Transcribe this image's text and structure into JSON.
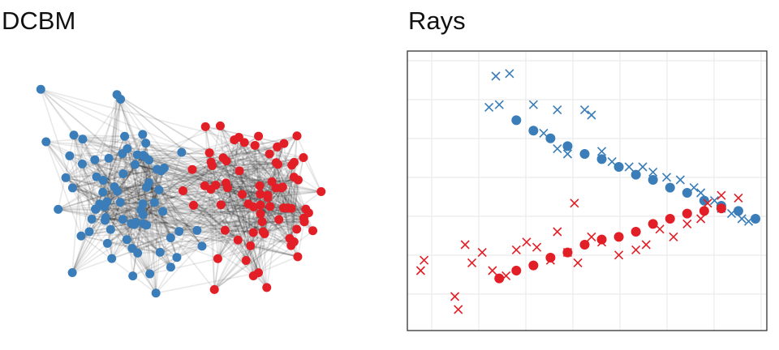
{
  "colors": {
    "blue": "#3A7DB8",
    "red": "#E21F26",
    "edge": "#000000",
    "grid": "#EBEBEB",
    "frame": "#333333"
  },
  "chart_data": [
    {
      "type": "network",
      "title": "DCBM",
      "groups": [
        {
          "color": "blue",
          "nodes": 75
        },
        {
          "color": "red",
          "nodes": 75
        }
      ],
      "edge_style": "semi-transparent gray"
    },
    {
      "type": "scatter",
      "title": "Rays",
      "xlabel": "",
      "ylabel": "",
      "xlim": [
        0,
        1
      ],
      "ylim": [
        0,
        1
      ],
      "grid": true,
      "series": [
        {
          "color": "blue",
          "marker": "circle",
          "points": [
            [
              0.3,
              0.78
            ],
            [
              0.35,
              0.74
            ],
            [
              0.4,
              0.71
            ],
            [
              0.45,
              0.68
            ],
            [
              0.5,
              0.65
            ],
            [
              0.55,
              0.63
            ],
            [
              0.6,
              0.6
            ],
            [
              0.65,
              0.57
            ],
            [
              0.7,
              0.55
            ],
            [
              0.75,
              0.52
            ],
            [
              0.8,
              0.5
            ],
            [
              0.85,
              0.47
            ],
            [
              0.9,
              0.45
            ],
            [
              0.95,
              0.43
            ],
            [
              1.0,
              0.4
            ]
          ]
        },
        {
          "color": "blue",
          "marker": "cross",
          "points": [
            [
              0.24,
              0.95
            ],
            [
              0.28,
              0.96
            ],
            [
              0.22,
              0.83
            ],
            [
              0.25,
              0.84
            ],
            [
              0.35,
              0.84
            ],
            [
              0.42,
              0.82
            ],
            [
              0.5,
              0.82
            ],
            [
              0.52,
              0.8
            ],
            [
              0.38,
              0.73
            ],
            [
              0.42,
              0.67
            ],
            [
              0.45,
              0.65
            ],
            [
              0.55,
              0.66
            ],
            [
              0.58,
              0.62
            ],
            [
              0.63,
              0.6
            ],
            [
              0.67,
              0.6
            ],
            [
              0.7,
              0.58
            ],
            [
              0.74,
              0.56
            ],
            [
              0.78,
              0.55
            ],
            [
              0.82,
              0.52
            ],
            [
              0.84,
              0.5
            ],
            [
              0.88,
              0.47
            ],
            [
              0.9,
              0.44
            ],
            [
              0.93,
              0.42
            ],
            [
              0.96,
              0.4
            ],
            [
              0.98,
              0.39
            ]
          ]
        },
        {
          "color": "red",
          "marker": "circle",
          "points": [
            [
              0.25,
              0.17
            ],
            [
              0.3,
              0.2
            ],
            [
              0.35,
              0.22
            ],
            [
              0.4,
              0.25
            ],
            [
              0.45,
              0.27
            ],
            [
              0.5,
              0.3
            ],
            [
              0.55,
              0.32
            ],
            [
              0.6,
              0.33
            ],
            [
              0.65,
              0.35
            ],
            [
              0.7,
              0.38
            ],
            [
              0.75,
              0.4
            ],
            [
              0.8,
              0.42
            ],
            [
              0.85,
              0.43
            ],
            [
              0.9,
              0.44
            ]
          ]
        },
        {
          "color": "red",
          "marker": "cross",
          "points": [
            [
              0.02,
              0.2
            ],
            [
              0.03,
              0.24
            ],
            [
              0.12,
              0.1
            ],
            [
              0.13,
              0.05
            ],
            [
              0.15,
              0.3
            ],
            [
              0.17,
              0.23
            ],
            [
              0.2,
              0.27
            ],
            [
              0.23,
              0.2
            ],
            [
              0.27,
              0.18
            ],
            [
              0.3,
              0.28
            ],
            [
              0.33,
              0.31
            ],
            [
              0.36,
              0.29
            ],
            [
              0.4,
              0.24
            ],
            [
              0.42,
              0.35
            ],
            [
              0.45,
              0.27
            ],
            [
              0.48,
              0.23
            ],
            [
              0.52,
              0.33
            ],
            [
              0.55,
              0.31
            ],
            [
              0.6,
              0.26
            ],
            [
              0.65,
              0.28
            ],
            [
              0.68,
              0.3
            ],
            [
              0.72,
              0.36
            ],
            [
              0.76,
              0.33
            ],
            [
              0.8,
              0.38
            ],
            [
              0.84,
              0.4
            ],
            [
              0.86,
              0.46
            ],
            [
              0.9,
              0.49
            ],
            [
              0.95,
              0.48
            ],
            [
              0.47,
              0.46
            ]
          ]
        }
      ]
    }
  ]
}
